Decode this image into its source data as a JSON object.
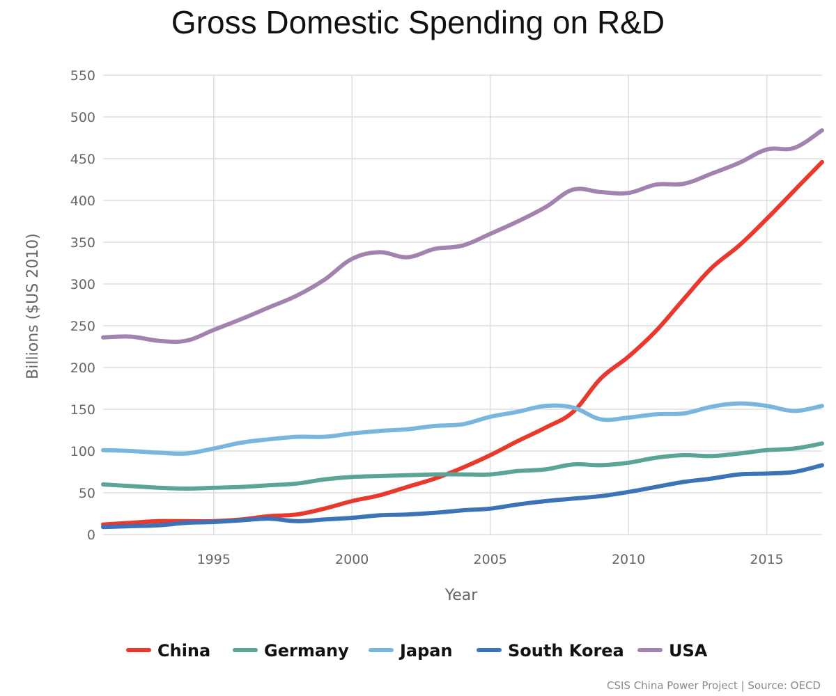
{
  "chart_data": {
    "type": "line",
    "title": "Gross Domestic Spending on R&D",
    "xlabel": "Year",
    "ylabel": "Billions ($US 2010)",
    "source": "CSIS China Power Project | Source: OECD",
    "xlim": [
      1991,
      2017
    ],
    "ylim": [
      0,
      550
    ],
    "x_ticks": [
      1995,
      2000,
      2005,
      2010,
      2015
    ],
    "y_ticks": [
      0,
      50,
      100,
      150,
      200,
      250,
      300,
      350,
      400,
      450,
      500,
      550
    ],
    "grid": true,
    "legend_position": "bottom",
    "x": [
      1991,
      1992,
      1993,
      1994,
      1995,
      1996,
      1997,
      1998,
      1999,
      2000,
      2001,
      2002,
      2003,
      2004,
      2005,
      2006,
      2007,
      2008,
      2009,
      2010,
      2011,
      2012,
      2013,
      2014,
      2015,
      2016,
      2017
    ],
    "series": [
      {
        "name": "China",
        "color": "#e8392c",
        "values": [
          12,
          14,
          16,
          16,
          16,
          18,
          22,
          24,
          31,
          40,
          47,
          57,
          67,
          80,
          95,
          112,
          128,
          147,
          187,
          213,
          244,
          282,
          319,
          346,
          378,
          412,
          446
        ]
      },
      {
        "name": "Germany",
        "color": "#5aa595",
        "values": [
          60,
          58,
          56,
          55,
          56,
          57,
          59,
          61,
          66,
          69,
          70,
          71,
          72,
          72,
          72,
          76,
          78,
          84,
          83,
          86,
          92,
          95,
          94,
          97,
          101,
          103,
          109
        ]
      },
      {
        "name": "Japan",
        "color": "#7ab5de",
        "values": [
          101,
          100,
          98,
          97,
          103,
          110,
          114,
          117,
          117,
          121,
          124,
          126,
          130,
          132,
          141,
          147,
          154,
          152,
          138,
          140,
          144,
          145,
          153,
          157,
          154,
          148,
          154
        ]
      },
      {
        "name": "South Korea",
        "color": "#3c72b8",
        "values": [
          9,
          10,
          11,
          14,
          15,
          17,
          19,
          16,
          18,
          20,
          23,
          24,
          26,
          29,
          31,
          36,
          40,
          43,
          46,
          51,
          57,
          63,
          67,
          72,
          73,
          75,
          83
        ]
      },
      {
        "name": "USA",
        "color": "#a283ae",
        "values": [
          236,
          237,
          232,
          232,
          245,
          258,
          272,
          286,
          305,
          330,
          338,
          332,
          342,
          346,
          360,
          375,
          392,
          413,
          410,
          409,
          419,
          420,
          432,
          445,
          461,
          463,
          484
        ]
      }
    ]
  }
}
